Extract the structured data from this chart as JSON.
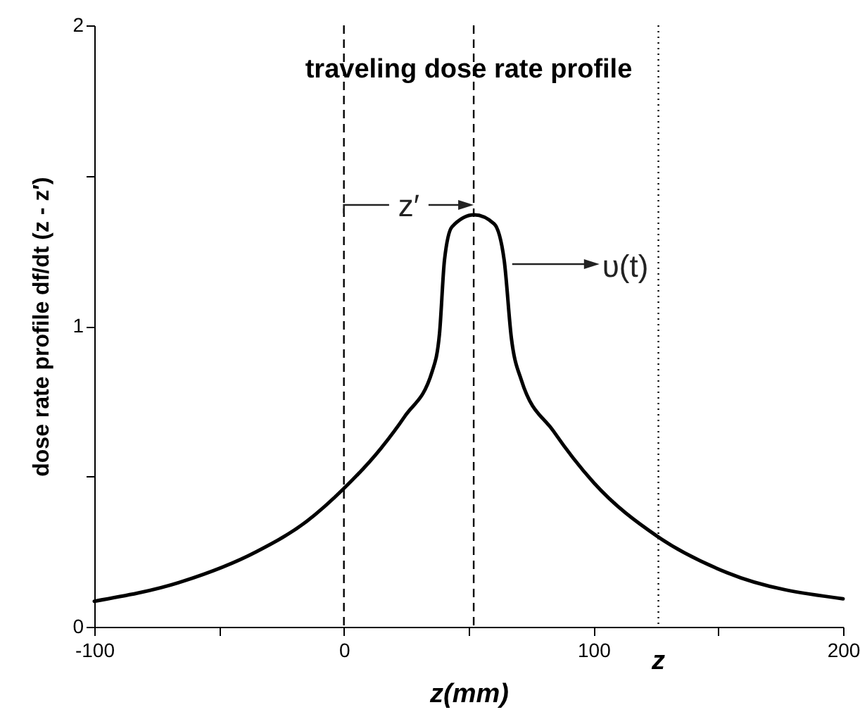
{
  "chart_data": {
    "type": "line",
    "title": "traveling dose rate profile",
    "xlabel": "z(mm)",
    "ylabel": "dose rate profile df/dt (z - z′)",
    "x": [
      -100,
      -65,
      -35,
      -15,
      0,
      14.5,
      24.4,
      35.4,
      38.3,
      40.3,
      43.3,
      52.2,
      60.2,
      64.2,
      67.1,
      71.1,
      84,
      100,
      125.7,
      153.5,
      200
    ],
    "series": [
      {
        "color": "#000000",
        "values": [
          0.085,
          0.15,
          0.25,
          0.35,
          0.46,
          0.59,
          0.7,
          0.85,
          0.975,
          1.22,
          1.33,
          1.37,
          1.34,
          1.22,
          0.96,
          0.82,
          0.65,
          0.48,
          0.3,
          0.18,
          0.093
        ]
      }
    ],
    "xlim": [
      -100,
      200
    ],
    "xticks": [
      -100,
      {
        "value": -50,
        "label": null
      },
      0,
      {
        "value": 50,
        "label": null
      },
      100,
      {
        "value": 150,
        "label": null
      },
      200
    ],
    "ylim": [
      0,
      2
    ],
    "yticks": [
      0,
      {
        "value": 0.5,
        "label": null
      },
      1,
      {
        "value": 1.5,
        "label": null
      },
      2
    ],
    "ref_lines": [
      {
        "axis": "x",
        "value": 0,
        "line_style": "dashed"
      },
      {
        "axis": "x",
        "value": 52,
        "line_style": "dashed"
      },
      {
        "axis": "x",
        "value": 126,
        "label": "z",
        "line_style": "dotted"
      }
    ],
    "annotations": [
      "z′",
      "υ(t)"
    ],
    "grid": false,
    "marker": "none",
    "line_style": "solid"
  }
}
